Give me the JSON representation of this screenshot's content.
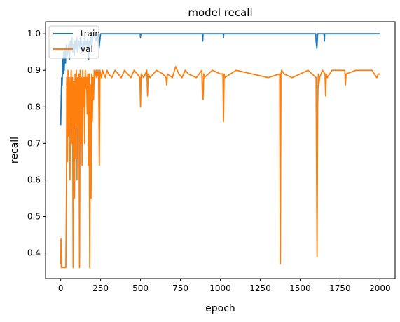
{
  "chart_data": {
    "type": "line",
    "title": "model recall",
    "xlabel": "epoch",
    "ylabel": "recall",
    "xlim": [
      -95,
      2095
    ],
    "ylim": [
      0.33,
      1.033
    ],
    "xticks": [
      0,
      250,
      500,
      750,
      1000,
      1250,
      1500,
      1750,
      2000
    ],
    "xtick_labels": [
      "0",
      "250",
      "500",
      "750",
      "1000",
      "1250",
      "1500",
      "1750",
      "2000"
    ],
    "yticks": [
      0.4,
      0.5,
      0.6,
      0.7,
      0.8,
      0.9,
      1.0
    ],
    "ytick_labels": [
      "0.4",
      "0.5",
      "0.6",
      "0.7",
      "0.8",
      "0.9",
      "1.0"
    ],
    "legend_position": "upper-left",
    "series": [
      {
        "name": "train",
        "color": "#1f77b4",
        "x": [
          0,
          3,
          6,
          9,
          12,
          15,
          18,
          22,
          26,
          30,
          35,
          40,
          45,
          50,
          55,
          60,
          65,
          70,
          75,
          80,
          85,
          90,
          95,
          100,
          105,
          110,
          115,
          120,
          125,
          130,
          135,
          140,
          145,
          150,
          155,
          160,
          165,
          170,
          175,
          180,
          185,
          190,
          195,
          200,
          210,
          220,
          230,
          240,
          250,
          260,
          300,
          400,
          498,
          500,
          502,
          600,
          700,
          800,
          888,
          890,
          892,
          1000,
          1018,
          1020,
          1022,
          1200,
          1400,
          1598,
          1600,
          1605,
          1610,
          1612,
          1614,
          1620,
          1650,
          1652,
          1654,
          1656,
          1660,
          1800,
          2000
        ],
        "y": [
          0.75,
          0.82,
          0.88,
          0.86,
          0.93,
          0.89,
          0.95,
          0.9,
          0.96,
          0.92,
          0.97,
          0.94,
          0.95,
          0.97,
          0.93,
          0.98,
          0.96,
          0.99,
          0.95,
          0.97,
          0.94,
          0.98,
          0.96,
          0.99,
          0.95,
          0.97,
          0.98,
          0.96,
          0.99,
          0.97,
          0.95,
          0.98,
          0.96,
          0.99,
          0.97,
          0.98,
          0.96,
          0.99,
          0.93,
          0.98,
          0.97,
          1.0,
          0.96,
          0.99,
          1.0,
          0.98,
          1.0,
          0.96,
          1.0,
          1.0,
          1.0,
          1.0,
          1.0,
          0.99,
          1.0,
          1.0,
          1.0,
          1.0,
          1.0,
          0.98,
          1.0,
          1.0,
          1.0,
          0.99,
          1.0,
          1.0,
          1.0,
          1.0,
          0.98,
          0.96,
          1.0,
          1.0,
          1.0,
          1.0,
          1.0,
          0.98,
          1.0,
          1.0,
          1.0,
          1.0,
          1.0
        ]
      },
      {
        "name": "val",
        "color": "#ff7f0e",
        "x": [
          0,
          2,
          4,
          8,
          14,
          20,
          26,
          32,
          36,
          38,
          42,
          46,
          50,
          54,
          58,
          62,
          66,
          70,
          74,
          78,
          82,
          86,
          90,
          94,
          98,
          102,
          106,
          110,
          114,
          118,
          122,
          126,
          130,
          134,
          138,
          142,
          146,
          150,
          154,
          158,
          162,
          166,
          170,
          174,
          178,
          182,
          186,
          190,
          194,
          198,
          202,
          206,
          210,
          214,
          218,
          222,
          226,
          230,
          234,
          238,
          242,
          246,
          250,
          256,
          262,
          270,
          280,
          290,
          300,
          320,
          340,
          360,
          380,
          400,
          420,
          440,
          460,
          480,
          496,
          500,
          504,
          520,
          540,
          544,
          548,
          560,
          600,
          640,
          660,
          664,
          668,
          700,
          720,
          740,
          760,
          780,
          800,
          850,
          884,
          888,
          892,
          896,
          900,
          950,
          1000,
          1016,
          1020,
          1024,
          1028,
          1100,
          1200,
          1300,
          1372,
          1376,
          1380,
          1384,
          1400,
          1450,
          1500,
          1550,
          1600,
          1606,
          1610,
          1614,
          1618,
          1622,
          1640,
          1656,
          1660,
          1664,
          1670,
          1700,
          1780,
          1784,
          1788,
          1850,
          1950,
          1980,
          1990,
          2000
        ],
        "y": [
          0.37,
          0.44,
          0.36,
          0.36,
          0.36,
          0.36,
          0.36,
          0.36,
          0.55,
          0.88,
          0.65,
          0.9,
          0.72,
          0.88,
          0.6,
          0.86,
          0.9,
          0.7,
          0.88,
          0.36,
          0.87,
          0.55,
          0.89,
          0.66,
          0.9,
          0.6,
          0.88,
          0.75,
          0.89,
          0.36,
          0.9,
          0.7,
          0.88,
          0.64,
          0.9,
          0.8,
          0.88,
          0.7,
          0.9,
          0.85,
          0.88,
          0.78,
          0.89,
          0.64,
          0.89,
          0.36,
          0.86,
          0.55,
          0.89,
          0.76,
          0.88,
          0.82,
          0.9,
          0.88,
          0.89,
          0.9,
          0.88,
          0.89,
          0.9,
          0.88,
          0.64,
          0.9,
          0.89,
          0.88,
          0.9,
          0.89,
          0.88,
          0.9,
          0.89,
          0.88,
          0.9,
          0.89,
          0.88,
          0.9,
          0.89,
          0.88,
          0.9,
          0.89,
          0.88,
          0.8,
          0.89,
          0.88,
          0.9,
          0.83,
          0.89,
          0.88,
          0.9,
          0.89,
          0.88,
          0.86,
          0.89,
          0.88,
          0.91,
          0.89,
          0.88,
          0.9,
          0.89,
          0.88,
          0.9,
          0.83,
          0.82,
          0.89,
          0.88,
          0.9,
          0.89,
          0.89,
          0.76,
          0.89,
          0.88,
          0.9,
          0.89,
          0.88,
          0.89,
          0.37,
          0.89,
          0.9,
          0.89,
          0.88,
          0.89,
          0.9,
          0.88,
          0.39,
          0.8,
          0.89,
          0.86,
          0.88,
          0.9,
          0.89,
          0.83,
          0.89,
          0.88,
          0.9,
          0.9,
          0.86,
          0.89,
          0.9,
          0.9,
          0.88,
          0.89,
          0.89
        ]
      }
    ]
  }
}
